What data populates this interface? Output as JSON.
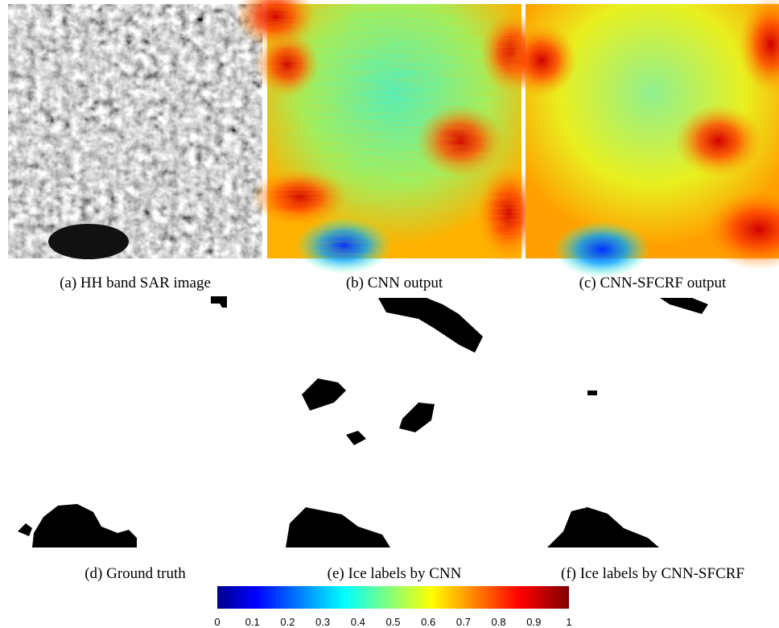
{
  "panels": [
    {
      "caption": "(a) HH band SAR image"
    },
    {
      "caption": "(b) CNN output"
    },
    {
      "caption": "(c) CNN-SFCRF output"
    },
    {
      "caption": "(d) Ground truth"
    },
    {
      "caption": "(e) Ice labels by CNN"
    },
    {
      "caption": "(f) Ice labels by CNN-SFCRF"
    }
  ],
  "colorbar": {
    "range": [
      0,
      1
    ],
    "ticks": [
      0,
      0.1,
      0.2,
      0.3,
      0.4,
      0.5,
      0.6,
      0.7,
      0.8,
      0.9,
      1
    ]
  }
}
